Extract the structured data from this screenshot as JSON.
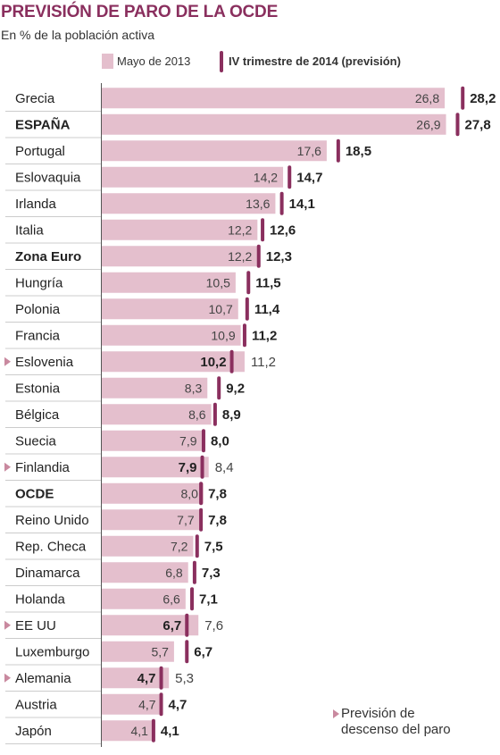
{
  "header": {
    "title": "PREVISIÓN DE PARO DE LA OCDE",
    "subtitle": "En % de la población activa"
  },
  "legend": {
    "series1_label": "Mayo de 2013",
    "series2_label": "IV trimestre de 2014 (previsión)"
  },
  "note": {
    "line1": "Previsión de",
    "line2": "descenso del paro"
  },
  "colors": {
    "bar": "#e4bfcd",
    "marker": "#8a2f5e",
    "title": "#8a2f5e",
    "note_arrow": "#c9899f"
  },
  "chart_data": {
    "type": "bar",
    "orientation": "horizontal",
    "categories": [
      "Grecia",
      "ESPAÑA",
      "Portugal",
      "Eslovaquia",
      "Irlanda",
      "Italia",
      "Zona Euro",
      "Hungría",
      "Polonia",
      "Francia",
      "Eslovenia",
      "Estonia",
      "Bélgica",
      "Suecia",
      "Finlandia",
      "OCDE",
      "Reino Unido",
      "Rep. Checa",
      "Dinamarca",
      "Holanda",
      "EE UU",
      "Luxemburgo",
      "Alemania",
      "Austria",
      "Japón"
    ],
    "bold_categories": [
      "ESPAÑA",
      "Zona Euro",
      "OCDE"
    ],
    "decrease_forecast": [
      "Eslovenia",
      "Finlandia",
      "EE UU",
      "Alemania"
    ],
    "series": [
      {
        "name": "Mayo de 2013",
        "values": [
          26.8,
          26.9,
          17.6,
          14.2,
          13.6,
          12.2,
          12.2,
          10.5,
          10.7,
          10.9,
          11.2,
          8.3,
          8.6,
          7.9,
          8.4,
          8.0,
          7.7,
          7.2,
          6.8,
          6.6,
          7.6,
          5.7,
          5.3,
          4.7,
          4.1
        ],
        "labels": [
          "26,8",
          "26,9",
          "17,6",
          "14,2",
          "13,6",
          "12,2",
          "12,2",
          "10,5",
          "10,7",
          "10,9",
          "11,2",
          "8,3",
          "8,6",
          "7,9",
          "8,4",
          "8,0",
          "7,7",
          "7,2",
          "6,8",
          "6,6",
          "7,6",
          "5,7",
          "5,3",
          "4,7",
          "4,1"
        ]
      },
      {
        "name": "IV trimestre de 2014 (previsión)",
        "values": [
          28.2,
          27.8,
          18.5,
          14.7,
          14.1,
          12.6,
          12.3,
          11.5,
          11.4,
          11.2,
          10.2,
          9.2,
          8.9,
          8.0,
          7.9,
          7.8,
          7.8,
          7.5,
          7.3,
          7.1,
          6.7,
          6.7,
          4.7,
          4.7,
          4.1
        ],
        "labels": [
          "28,2",
          "27,8",
          "18,5",
          "14,7",
          "14,1",
          "12,6",
          "12,3",
          "11,5",
          "11,4",
          "11,2",
          "10,2",
          "9,2",
          "8,9",
          "8,0",
          "7,9",
          "7,8",
          "7,8",
          "7,5",
          "7,3",
          "7,1",
          "6,7",
          "6,7",
          "4,7",
          "4,7",
          "4,1"
        ]
      }
    ],
    "xlim": [
      0,
      29.5
    ],
    "grid": false
  }
}
